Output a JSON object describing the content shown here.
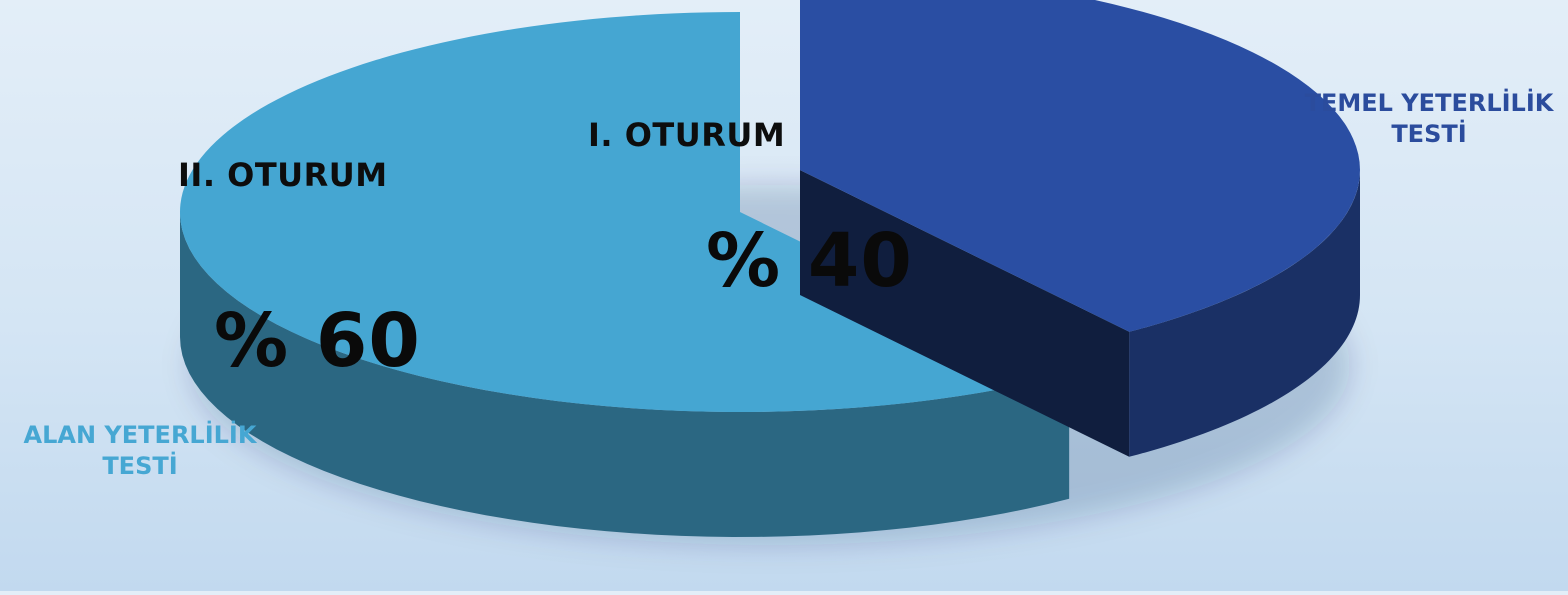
{
  "colors": {
    "slice_1": "#2a4ea3",
    "slice_2": "#45a6d2",
    "legend_1": "#2b4c9d",
    "legend_2": "#46a7d3"
  },
  "chart_data": {
    "type": "pie",
    "style": "3d-exploded",
    "slices": [
      {
        "session": "I. OTURUM",
        "name": "TEMEL YETERLİLİK TESTİ",
        "value": 40,
        "value_label": "% 40"
      },
      {
        "session": "II. OTURUM",
        "name": "ALAN YETERLİLİK TESTİ",
        "value": 60,
        "value_label": "% 60"
      }
    ]
  }
}
